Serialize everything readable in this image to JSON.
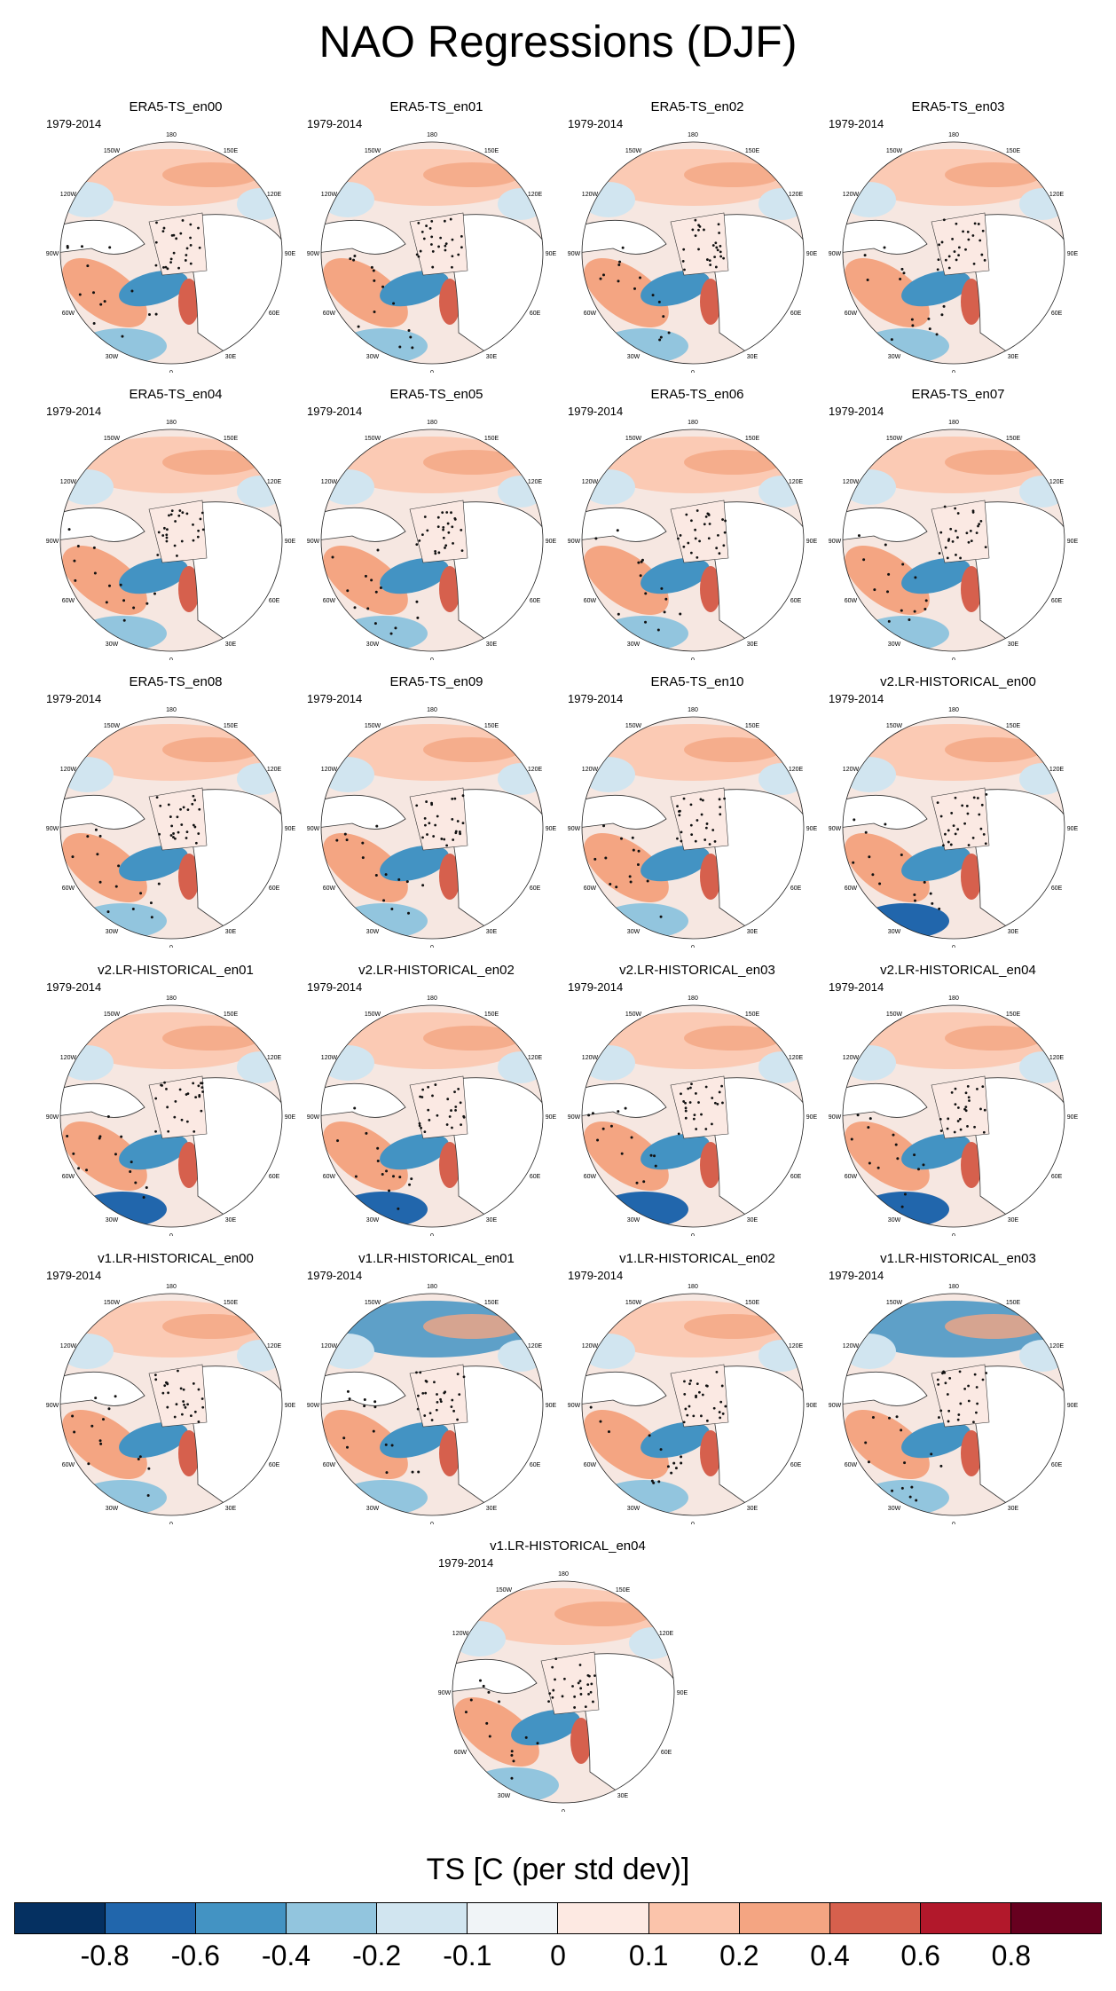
{
  "title": "NAO Regressions (DJF)",
  "period": "1979-2014",
  "panel_titles": [
    "ERA5-TS_en00",
    "ERA5-TS_en01",
    "ERA5-TS_en02",
    "ERA5-TS_en03",
    "ERA5-TS_en04",
    "ERA5-TS_en05",
    "ERA5-TS_en06",
    "ERA5-TS_en07",
    "ERA5-TS_en08",
    "ERA5-TS_en09",
    "ERA5-TS_en10",
    "v2.LR-HISTORICAL_en00",
    "v2.LR-HISTORICAL_en01",
    "v2.LR-HISTORICAL_en02",
    "v2.LR-HISTORICAL_en03",
    "v2.LR-HISTORICAL_en04",
    "v1.LR-HISTORICAL_en00",
    "v1.LR-HISTORICAL_en01",
    "v1.LR-HISTORICAL_en02",
    "v1.LR-HISTORICAL_en03",
    "v1.LR-HISTORICAL_en04"
  ],
  "longitude_labels": [
    "180",
    "150W",
    "150E",
    "120W",
    "120E",
    "90W",
    "90E",
    "60W",
    "60E",
    "30W",
    "30E",
    "0"
  ],
  "colorbar": {
    "label": "TS [C (per std dev)]",
    "tick_labels": [
      "-0.8",
      "-0.6",
      "-0.4",
      "-0.2",
      "-0.1",
      "0",
      "0.1",
      "0.2",
      "0.4",
      "0.6",
      "0.8"
    ],
    "colors": [
      "#053061",
      "#2166ac",
      "#4393c3",
      "#92c5de",
      "#d1e5f0",
      "#f0f4f7",
      "#fde9e2",
      "#fbc4ab",
      "#f4a582",
      "#d6604d",
      "#b2182b",
      "#67001f"
    ]
  }
}
